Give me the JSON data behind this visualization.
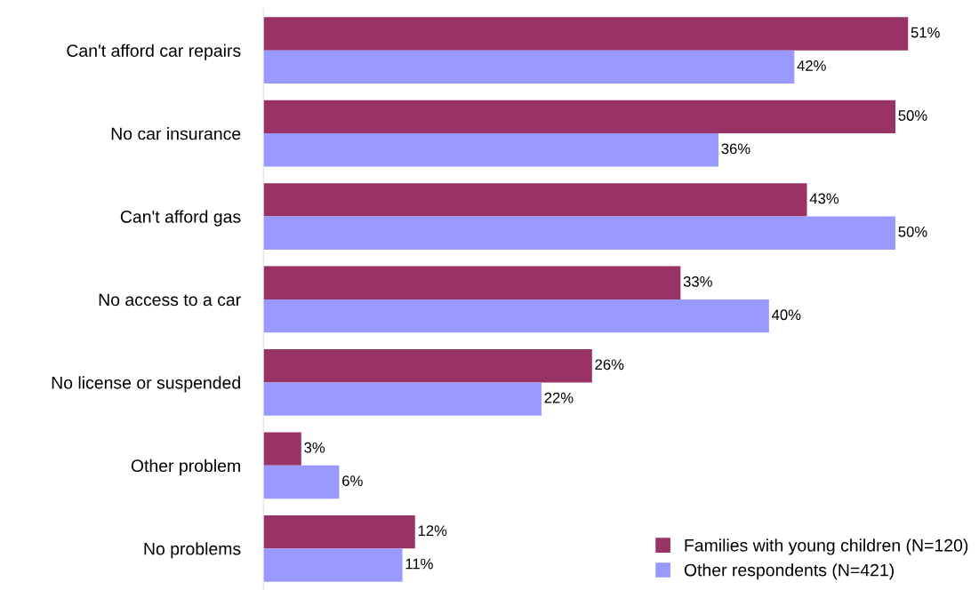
{
  "chart_data": {
    "type": "bar",
    "orientation": "horizontal",
    "categories": [
      "Can't afford car repairs",
      "No car insurance",
      "Can't afford gas",
      "No access to a car",
      "No license or suspended",
      "Other problem",
      "No problems"
    ],
    "series": [
      {
        "name": "Families with young children (N=120)",
        "color": "#993366",
        "values": [
          51,
          50,
          43,
          33,
          26,
          3,
          12
        ],
        "value_labels": [
          "51%",
          "50%",
          "43%",
          "33%",
          "26%",
          "3%",
          "12%"
        ]
      },
      {
        "name": "Other respondents (N=421)",
        "color": "#9999ff",
        "values": [
          42,
          36,
          50,
          40,
          22,
          6,
          11
        ],
        "value_labels": [
          "42%",
          "36%",
          "50%",
          "40%",
          "22%",
          "6%",
          "11%"
        ]
      }
    ],
    "legend": "bottom right",
    "grid": false,
    "tick_labels": "y"
  }
}
